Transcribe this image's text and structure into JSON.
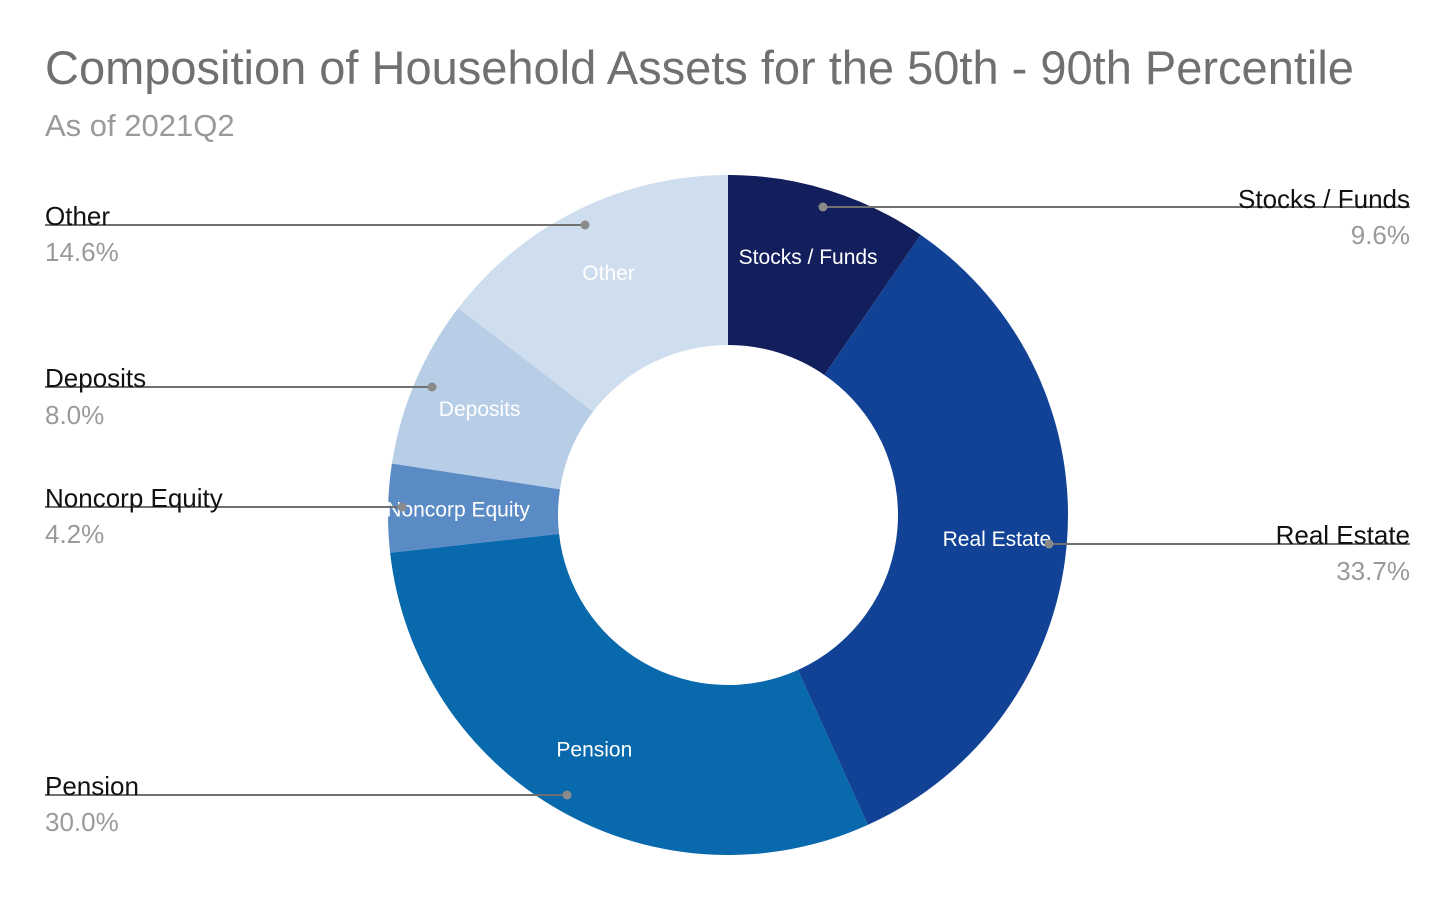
{
  "chart_data": {
    "type": "pie",
    "title": "Composition of Household Assets for the 50th - 90th Percentile",
    "subtitle": "As of 2021Q2",
    "donut": true,
    "slices": [
      {
        "name": "Stocks / Funds",
        "value": 9.6,
        "percent_label": "9.6%",
        "color": "#131f5c"
      },
      {
        "name": "Real Estate",
        "value": 33.7,
        "percent_label": "33.7%",
        "color": "#114296"
      },
      {
        "name": "Pension",
        "value": 30.0,
        "percent_label": "30.0%",
        "color": "#0869ad"
      },
      {
        "name": "Noncorp Equity",
        "value": 4.2,
        "percent_label": "4.2%",
        "color": "#5a8bc4"
      },
      {
        "name": "Deposits",
        "value": 8.0,
        "percent_label": "8.0%",
        "color": "#b8cde6"
      },
      {
        "name": "Other",
        "value": 14.6,
        "percent_label": "14.6%",
        "color": "#cfdeee"
      }
    ],
    "leader_line_color": "#707070"
  }
}
